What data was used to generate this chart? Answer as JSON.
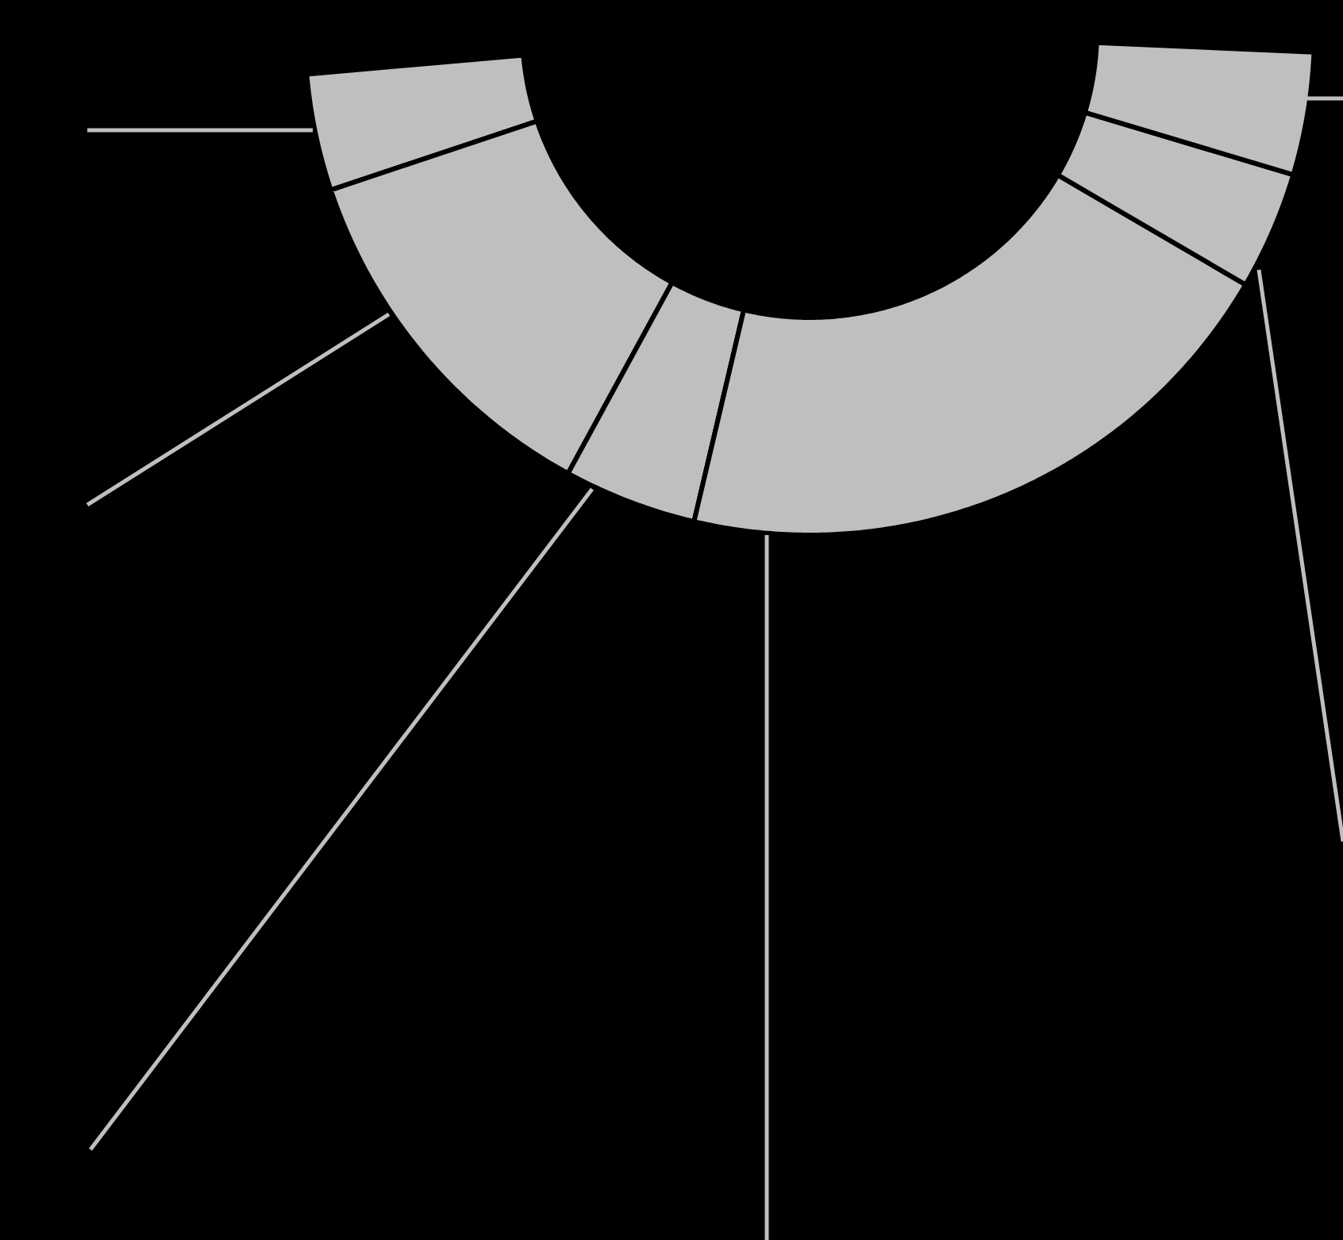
{
  "chart_data": {
    "type": "donut",
    "categories": [
      null,
      null,
      null,
      null,
      null,
      null
    ],
    "values": [
      7.8,
      24.9,
      8.9,
      42.3,
      7.9,
      8.2
    ],
    "colors": [
      "#c0bfc0",
      "#c0bfc0",
      "#c0bfc0",
      "#c0bfc0",
      "#c0bfc0",
      "#c0bfc0"
    ]
  }
}
